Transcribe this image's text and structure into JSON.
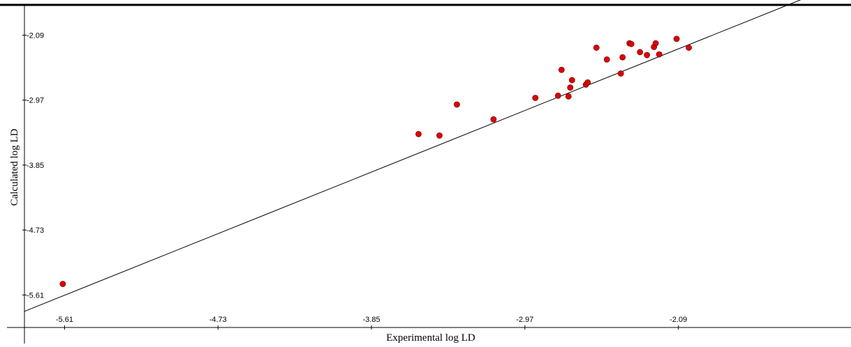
{
  "chart_data": {
    "type": "scatter",
    "title": "",
    "xlabel": "Experimental log LD",
    "ylabel": "Calculated log LD",
    "xlim": [
      -5.84,
      -1.1
    ],
    "ylim": [
      -6.05,
      -1.68
    ],
    "xticks": [
      -5.61,
      -4.73,
      -3.85,
      -2.97,
      -2.09
    ],
    "yticks": [
      -2.09,
      -2.97,
      -3.85,
      -4.73,
      -5.61
    ],
    "xtick_labels": [
      "-5.61",
      "-4.73",
      "-3.85",
      "-2.97",
      "-2.09"
    ],
    "ytick_labels": [
      "-2.09",
      "-2.97",
      "-3.85",
      "-4.73",
      "-5.61"
    ],
    "grid": false,
    "legend": "none",
    "point_color": "#e00000",
    "fit_line": {
      "slope": 0.948,
      "intercept": -0.295
    },
    "points": [
      {
        "x": -5.62,
        "y": -5.46
      },
      {
        "x": -3.58,
        "y": -3.43
      },
      {
        "x": -3.46,
        "y": -3.45
      },
      {
        "x": -3.36,
        "y": -3.03
      },
      {
        "x": -3.15,
        "y": -3.23
      },
      {
        "x": -2.91,
        "y": -2.94
      },
      {
        "x": -2.78,
        "y": -2.91
      },
      {
        "x": -2.76,
        "y": -2.56
      },
      {
        "x": -2.72,
        "y": -2.92
      },
      {
        "x": -2.71,
        "y": -2.8
      },
      {
        "x": -2.7,
        "y": -2.7
      },
      {
        "x": -2.62,
        "y": -2.76
      },
      {
        "x": -2.61,
        "y": -2.73
      },
      {
        "x": -2.56,
        "y": -2.26
      },
      {
        "x": -2.5,
        "y": -2.42
      },
      {
        "x": -2.42,
        "y": -2.61
      },
      {
        "x": -2.41,
        "y": -2.39
      },
      {
        "x": -2.37,
        "y": -2.2
      },
      {
        "x": -2.36,
        "y": -2.21
      },
      {
        "x": -2.31,
        "y": -2.32
      },
      {
        "x": -2.27,
        "y": -2.36
      },
      {
        "x": -2.23,
        "y": -2.25
      },
      {
        "x": -2.22,
        "y": -2.2
      },
      {
        "x": -2.2,
        "y": -2.35
      },
      {
        "x": -2.1,
        "y": -2.14
      },
      {
        "x": -2.03,
        "y": -2.26
      }
    ]
  }
}
